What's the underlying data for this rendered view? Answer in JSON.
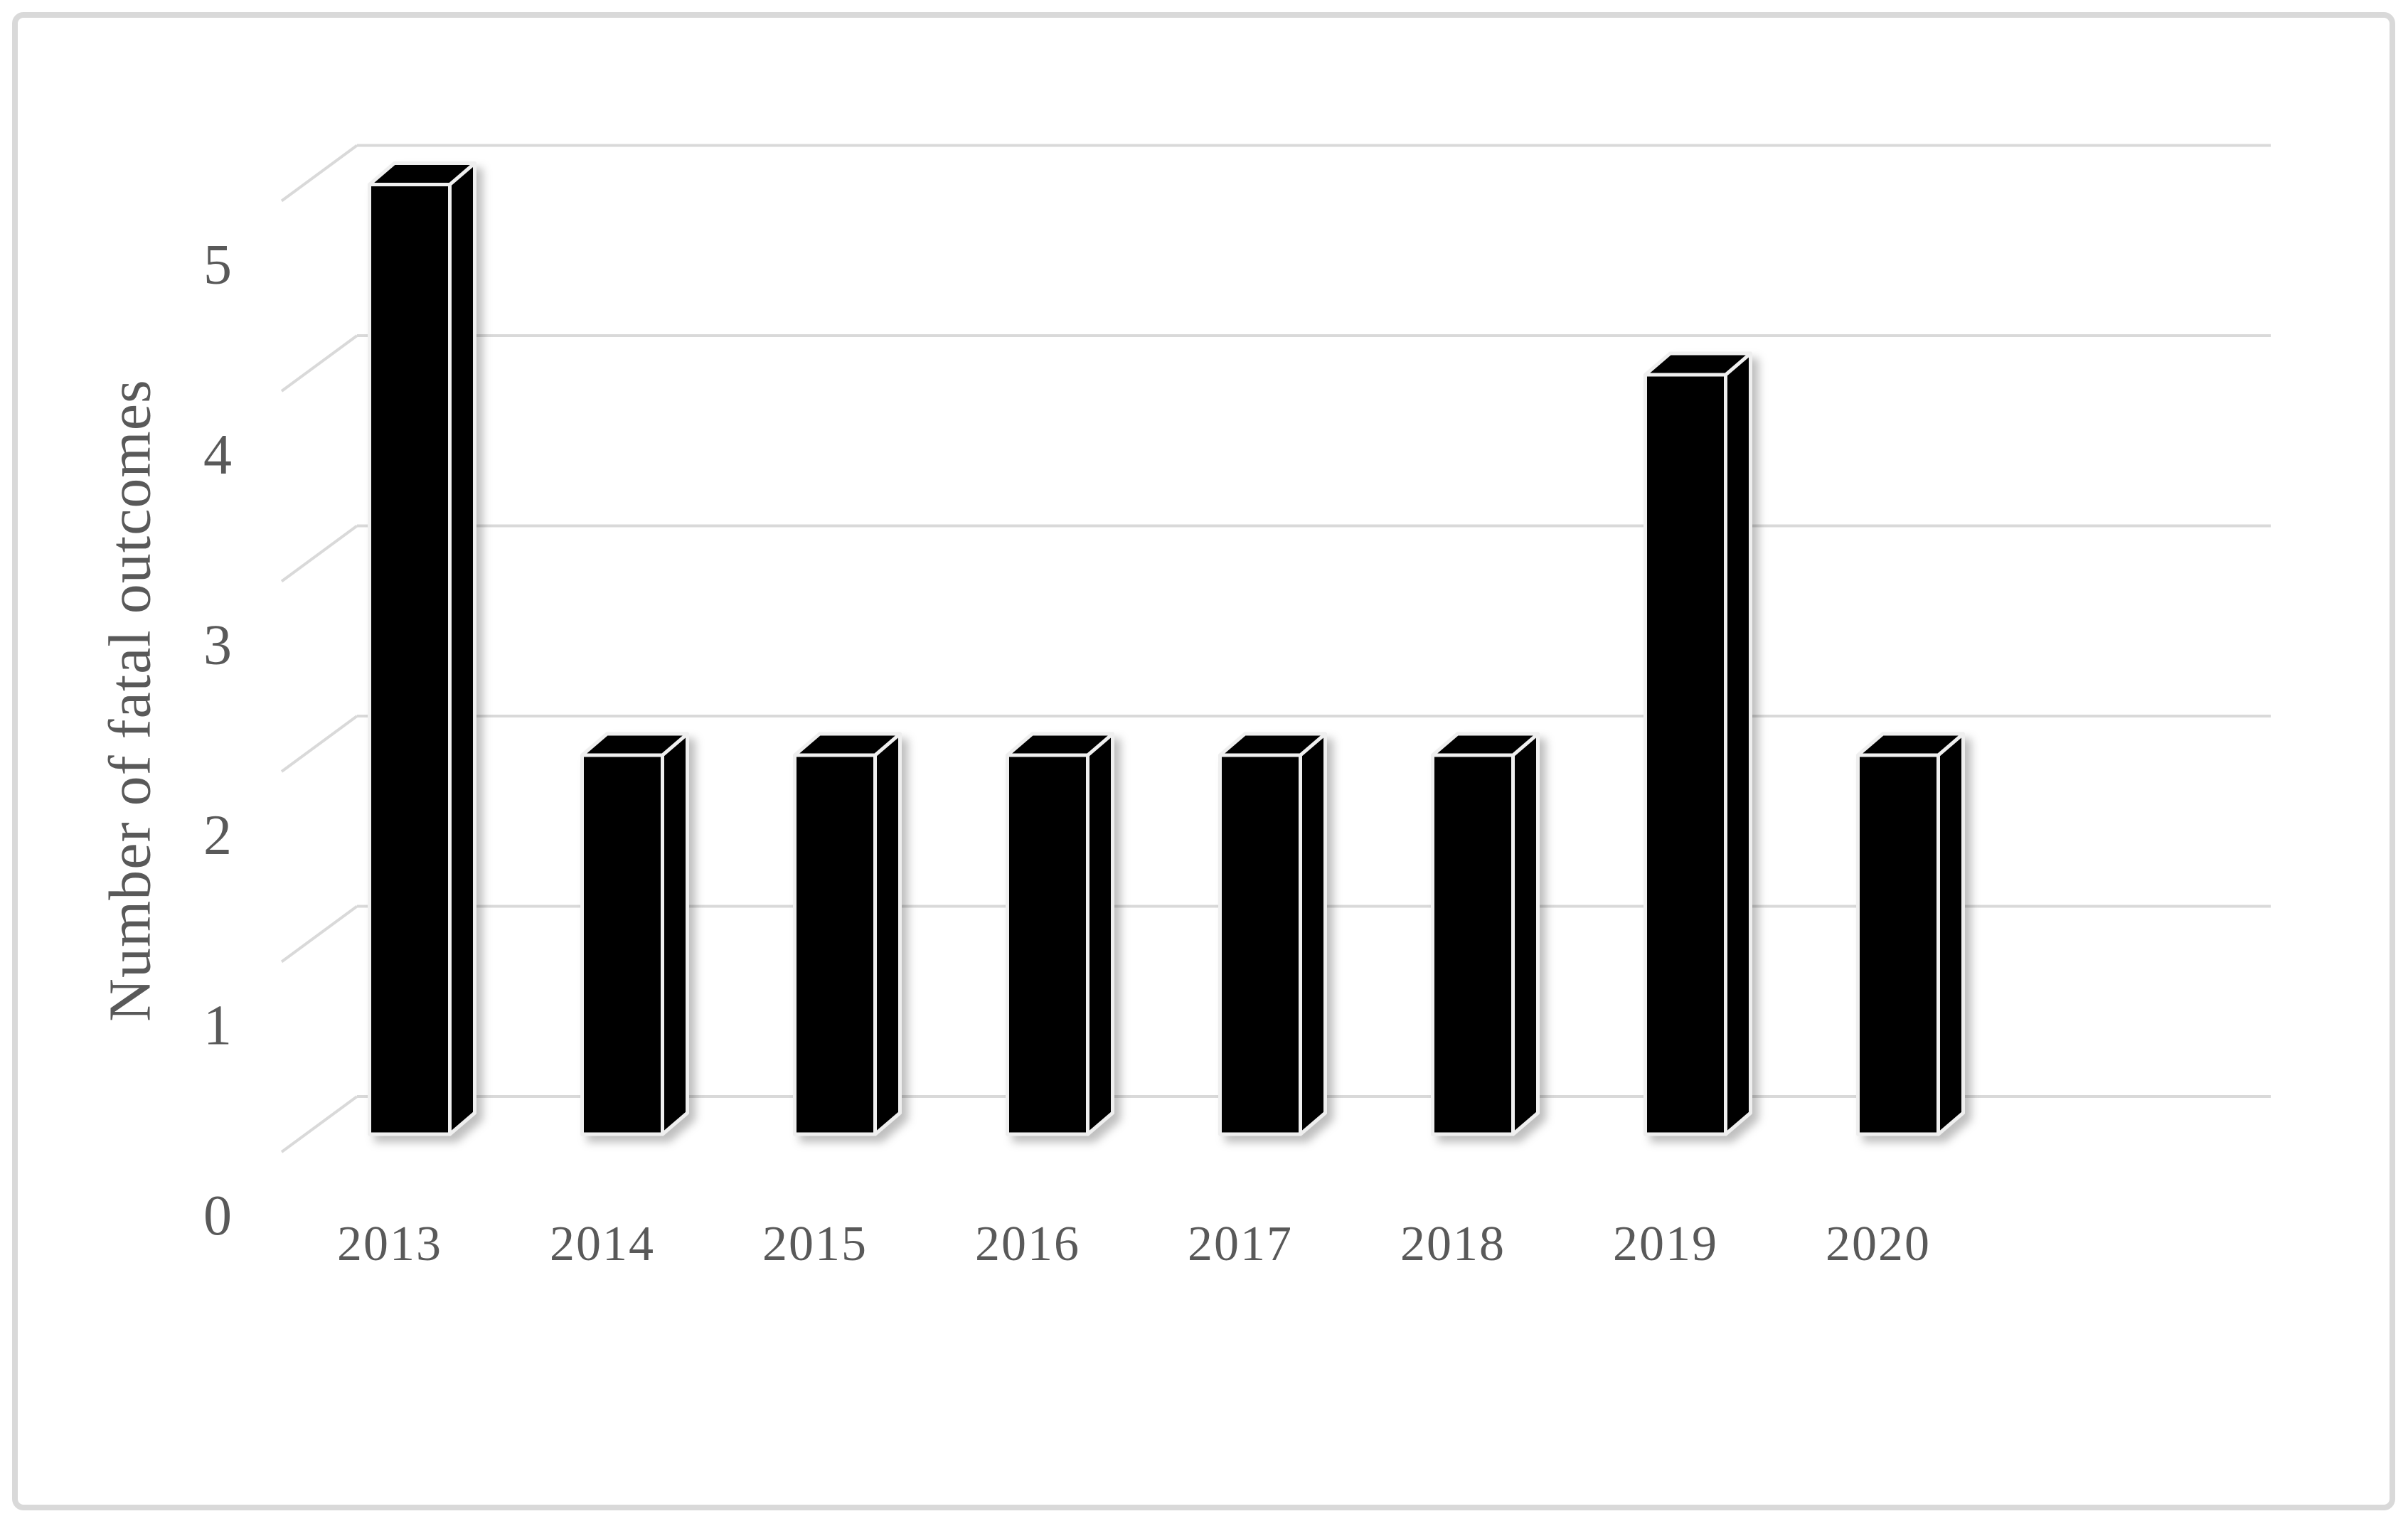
{
  "figure": {
    "background_color": "#ffffff",
    "border_color": "#d9d9d9"
  },
  "chart_data": {
    "type": "bar",
    "style_3d": true,
    "title": "",
    "categories": [
      "2013",
      "2014",
      "2015",
      "2016",
      "2017",
      "2018",
      "2019",
      "2020"
    ],
    "series": [
      {
        "name": "Number of fatal outcomes",
        "values": [
          5,
          2,
          2,
          2,
          2,
          2,
          4,
          2
        ]
      }
    ],
    "xlabel": "",
    "ylabel": "Number of fatal outcomes",
    "ylim": [
      0,
      5
    ],
    "yticks": [
      0,
      1,
      2,
      3,
      4,
      5
    ],
    "grid": true,
    "legend_position": "none",
    "bar_color": "#000000",
    "bar_outline_color": "#efefef",
    "gridline_color": "#d9d9d9",
    "text_color": "#595959"
  }
}
